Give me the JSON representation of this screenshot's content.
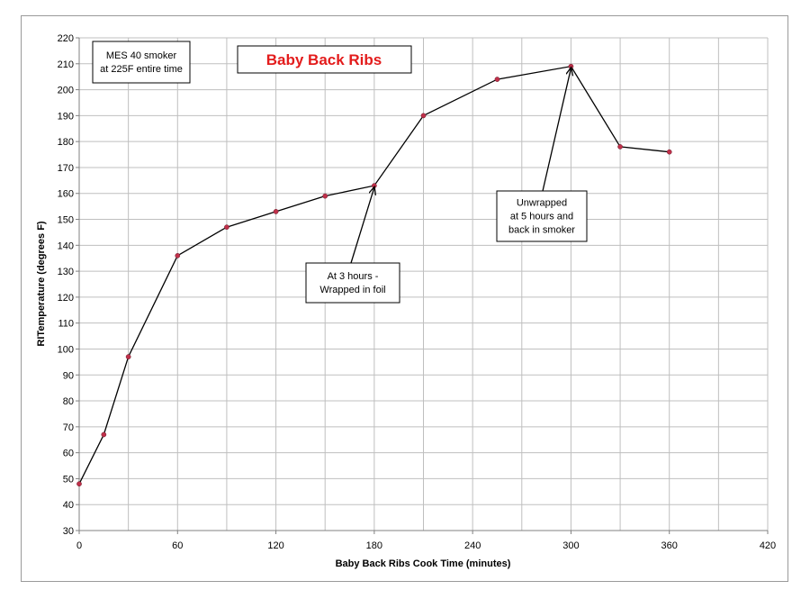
{
  "chart_data": {
    "type": "line",
    "title": "Baby Back Ribs",
    "xlabel": "Baby Back Ribs Cook Time (minutes)",
    "ylabel": "RITemperature (degrees F)",
    "xlim": [
      0,
      420
    ],
    "ylim": [
      30,
      220
    ],
    "x_ticks": [
      0,
      60,
      120,
      180,
      240,
      300,
      360,
      420
    ],
    "y_ticks": [
      30,
      40,
      50,
      60,
      70,
      80,
      90,
      100,
      110,
      120,
      130,
      140,
      150,
      160,
      170,
      180,
      190,
      200,
      210,
      220
    ],
    "x_minor_step": 30,
    "grid": true,
    "series": [
      {
        "x": [
          0,
          15,
          30,
          60,
          90,
          120,
          150,
          180,
          210,
          255,
          300,
          330,
          360
        ],
        "y": [
          48,
          67,
          97,
          136,
          147,
          153,
          159,
          163,
          190,
          204,
          209,
          178,
          176
        ]
      }
    ],
    "annotations": [
      {
        "lines": [
          "MES 40 smoker",
          "at 225F entire time"
        ]
      },
      {
        "lines": [
          "At 3 hours -",
          "Wrapped in foil"
        ],
        "arrow_to": [
          180,
          163
        ]
      },
      {
        "lines": [
          "Unwrapped",
          "at 5 hours and",
          "back in smoker"
        ],
        "arrow_to": [
          300,
          209
        ]
      }
    ],
    "colors": {
      "line": "#000000",
      "marker": "#c0304a",
      "title": "#e31c1c",
      "grid": "#bfbfbf"
    }
  }
}
